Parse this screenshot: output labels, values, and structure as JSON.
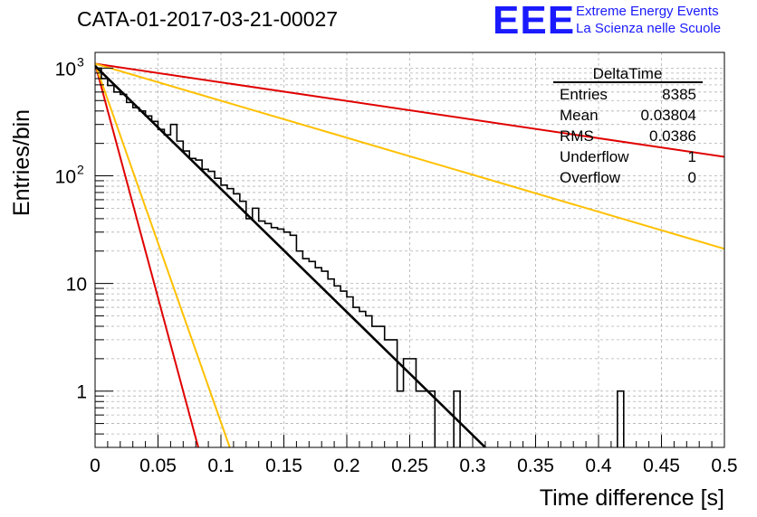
{
  "header": {
    "title": "CATA-01-2017-03-21-00027",
    "logo_text": "EEE",
    "tagline_1": "Extreme Energy Events",
    "tagline_2": "La Scienza nelle Scuole"
  },
  "stats_box": {
    "title": "DeltaTime",
    "rows": [
      {
        "label": "Entries",
        "value": "8385"
      },
      {
        "label": "Mean",
        "value": "0.03804"
      },
      {
        "label": "RMS",
        "value": "0.0386"
      },
      {
        "label": "Underflow",
        "value": "1"
      },
      {
        "label": "Overflow",
        "value": "0"
      }
    ]
  },
  "colors": {
    "histogram": "#000000",
    "fit": "#000000",
    "red_lines": "#e00000",
    "yellow_lines": "#ffc000",
    "grid": "#b0b0b0",
    "logo": "#1a1aff"
  },
  "chart_data": {
    "type": "histogram",
    "xlabel": "Time difference [s]",
    "ylabel": "Entries/bin",
    "xlim": [
      0,
      0.5
    ],
    "ylim": [
      0.3,
      1400
    ],
    "y_scale": "log",
    "grid": true,
    "x_ticks": [
      "0",
      "0.05",
      "0.1",
      "0.15",
      "0.2",
      "0.25",
      "0.3",
      "0.35",
      "0.4",
      "0.45",
      "0.5"
    ],
    "y_ticks": [
      {
        "value": 1,
        "label": "1"
      },
      {
        "value": 10,
        "label": "10"
      },
      {
        "value": 100,
        "label": "10",
        "exp": "2"
      },
      {
        "value": 1000,
        "label": "10",
        "exp": "3"
      }
    ],
    "bin_width": 0.005,
    "bin_start": 0,
    "counts": [
      1000,
      800,
      690,
      600,
      570,
      480,
      430,
      400,
      360,
      320,
      270,
      240,
      300,
      210,
      170,
      145,
      140,
      115,
      110,
      95,
      82,
      76,
      68,
      58,
      40,
      50,
      38,
      36,
      33,
      32,
      30,
      28,
      20,
      17,
      16,
      14,
      13,
      11,
      9.5,
      8.5,
      7.5,
      6,
      5.5,
      5,
      4,
      4,
      3,
      3,
      1,
      2,
      2,
      1,
      1,
      1,
      0,
      0,
      0,
      1,
      0,
      0,
      0,
      0,
      0,
      0,
      0,
      0,
      0,
      0,
      0,
      0,
      0,
      0,
      0,
      0,
      0,
      0,
      0,
      0,
      0,
      0,
      0,
      0,
      0,
      1,
      0,
      0,
      0,
      0,
      0,
      0,
      0,
      0,
      0,
      0,
      0,
      0,
      0,
      0,
      0,
      0
    ],
    "fit_line": {
      "x": [
        0,
        0.31
      ],
      "y": [
        1050,
        0.3
      ]
    },
    "reference_lines": [
      {
        "color": "red",
        "x": [
          0,
          0.5
        ],
        "y": [
          1100,
          150
        ]
      },
      {
        "color": "red",
        "x": [
          0,
          0.082
        ],
        "y": [
          1100,
          0.3
        ]
      },
      {
        "color": "yellow",
        "x": [
          0,
          0.5
        ],
        "y": [
          1100,
          21
        ]
      },
      {
        "color": "yellow",
        "x": [
          0,
          0.107
        ],
        "y": [
          1100,
          0.3
        ]
      }
    ]
  }
}
